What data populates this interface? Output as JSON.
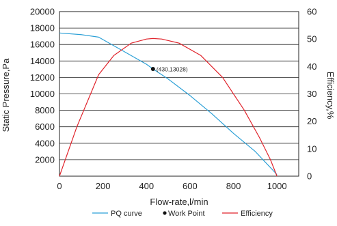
{
  "chart_data": {
    "type": "line",
    "xlabel": "Flow-rate,l/min",
    "ylabel": "Static Pressure,Pa",
    "y2label": "Efficiency,%",
    "xlim": [
      0,
      1100
    ],
    "ylim": [
      0,
      20000
    ],
    "y2lim": [
      0,
      60
    ],
    "x_ticks": [
      0,
      200,
      400,
      600,
      800,
      1000
    ],
    "y_ticks": [
      2000,
      4000,
      6000,
      8000,
      10000,
      12000,
      14000,
      16000,
      18000,
      20000
    ],
    "y2_ticks": [
      0,
      10,
      20,
      30,
      40,
      50,
      60
    ],
    "grid": "horizontal",
    "legend_position": "bottom",
    "colors": {
      "pq": "#2a9fd6",
      "efficiency": "#e0222a",
      "work_point": "#111111"
    },
    "series": [
      {
        "name": "PQ curve",
        "axis": "left",
        "x": [
          0,
          100,
          180,
          200,
          300,
          400,
          430,
          500,
          600,
          700,
          800,
          900,
          1000
        ],
        "y": [
          17400,
          17200,
          16900,
          16600,
          15100,
          13600,
          13028,
          11800,
          9800,
          7600,
          5200,
          3000,
          200
        ]
      },
      {
        "name": "Efficiency",
        "axis": "right",
        "x": [
          0,
          80,
          180,
          250,
          330,
          400,
          430,
          470,
          550,
          650,
          750,
          850,
          920,
          970,
          1000
        ],
        "y": [
          0,
          18,
          37,
          44,
          48.5,
          50,
          50.2,
          50,
          48.5,
          44,
          36,
          24,
          14,
          6,
          0
        ]
      }
    ],
    "work_point": {
      "name": "Work Point",
      "label": "(430,13028)",
      "x": 430,
      "y": 13028
    }
  }
}
